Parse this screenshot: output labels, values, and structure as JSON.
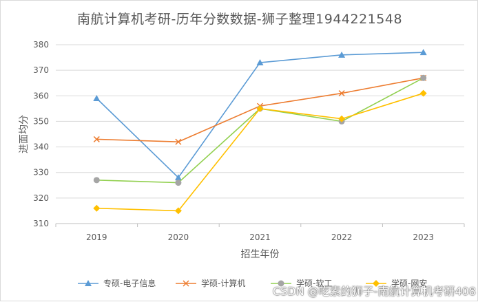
{
  "chart_data": {
    "type": "line",
    "title": "南航计算机考研-历年分数数据-狮子整理1944221548",
    "xlabel": "招生年份",
    "ylabel": "进面均分",
    "categories": [
      "2019",
      "2020",
      "2021",
      "2022",
      "2023"
    ],
    "ylim": [
      310,
      380
    ],
    "yticks": [
      310,
      320,
      330,
      340,
      350,
      360,
      370,
      380
    ],
    "grid": true,
    "legend_position": "bottom",
    "series": [
      {
        "name": "专硕-电子信息",
        "color": "#5b9bd5",
        "marker": "triangle",
        "values": [
          359,
          328,
          373,
          376,
          377
        ]
      },
      {
        "name": "学硕-计算机",
        "color": "#ed7d31",
        "marker": "x",
        "values": [
          343,
          342,
          356,
          361,
          367
        ]
      },
      {
        "name": "学硕-软工",
        "color": "#92d050",
        "marker_color": "#a5a5a5",
        "marker": "circle",
        "values": [
          327,
          326,
          355,
          350,
          367
        ]
      },
      {
        "name": "学硕-网安",
        "color": "#ffc000",
        "marker": "diamond",
        "values": [
          316,
          315,
          355,
          351,
          361
        ]
      }
    ]
  },
  "watermark": "CSDN @吃素的狮子-南航计算机考研408"
}
